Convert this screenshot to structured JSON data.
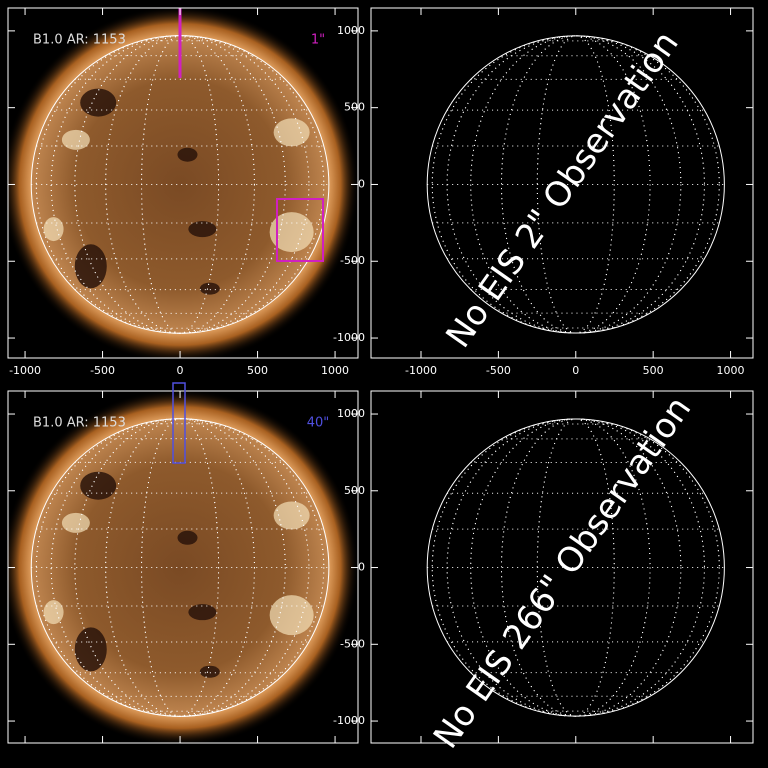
{
  "panels": [
    {
      "label": "B1.0 AR: 1153",
      "tag": "1\"",
      "tag_color": "#d020c0",
      "image": true,
      "xlim": [
        -1110,
        1148
      ],
      "ylim": [
        1149,
        -1130
      ],
      "xticks": [
        -1000,
        -500,
        0,
        500,
        1000
      ],
      "yticks": [
        -1000,
        -500,
        0,
        500,
        1000
      ],
      "xtick_labels": true,
      "ytick_labels": false
    },
    {
      "message": "No EIS 2\" Observation",
      "image": false,
      "xlim": [
        -1323,
        1145
      ],
      "ylim": [
        1149,
        -1130
      ],
      "xticks": [
        -1000,
        -500,
        0,
        500,
        1000
      ],
      "yticks": [
        -1000,
        -500,
        0,
        500,
        1000
      ],
      "xtick_labels": true,
      "ytick_labels": true
    },
    {
      "label": "B1.0 AR: 1153",
      "tag": "40\"",
      "tag_color": "#5050e0",
      "image": true,
      "xlim": [
        -1110,
        1148
      ],
      "ylim": [
        1150,
        -1143
      ],
      "xticks": [
        -1000,
        -500,
        0,
        500,
        1000
      ],
      "yticks": [
        -1000,
        -500,
        0,
        500,
        1000
      ],
      "xtick_labels": false,
      "ytick_labels": false
    },
    {
      "message": "No EIS 266\" Observation",
      "image": false,
      "xlim": [
        -1323,
        1145
      ],
      "ylim": [
        1150,
        -1143
      ],
      "xticks": [
        -1000,
        -500,
        0,
        500,
        1000
      ],
      "yticks": [
        -1000,
        -500,
        0,
        500,
        1000
      ],
      "xtick_labels": false,
      "ytick_labels": true
    }
  ]
}
